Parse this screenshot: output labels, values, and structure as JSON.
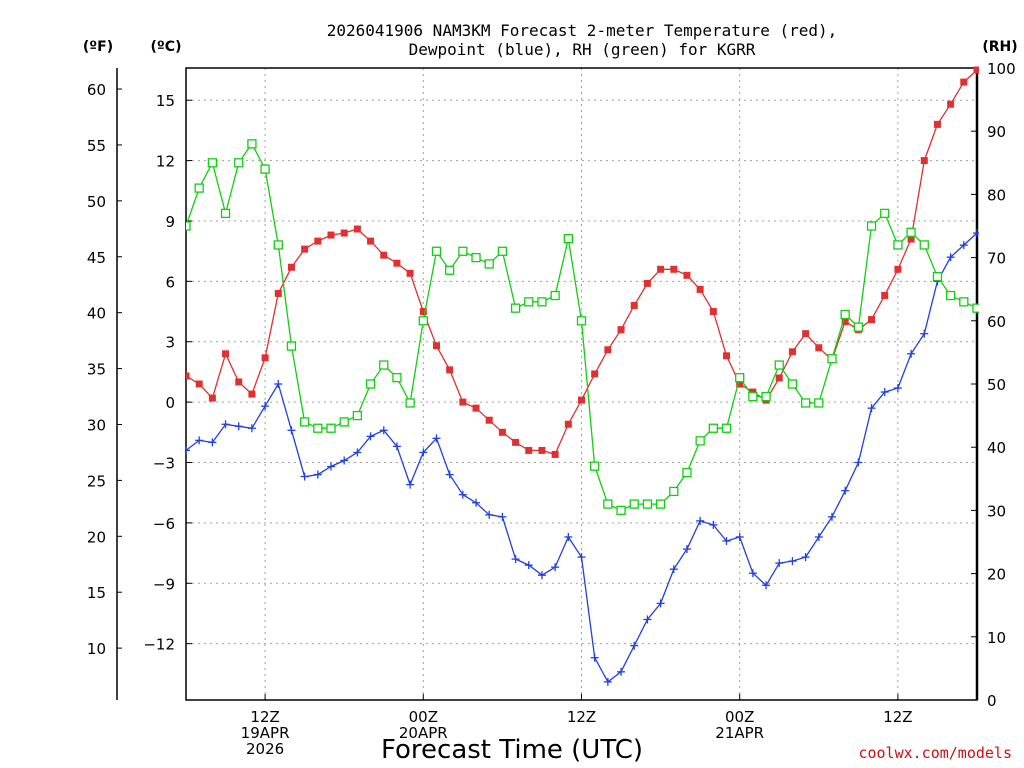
{
  "chart_data": {
    "type": "line",
    "title_line1": "2026041906 NAM3KM Forecast 2-meter Temperature (red),",
    "title_line2": "Dewpoint (blue), RH (green) for KGRR",
    "xlabel": "Forecast Time (UTC)",
    "credit": "coolwx.com/models",
    "units": {
      "f": "(ºF)",
      "c": "(ºC)",
      "rh": "(RH)"
    },
    "grid": true,
    "x_range_hours": [
      6,
      66
    ],
    "celsius_range": [
      -14.8,
      16.6
    ],
    "rh_range": [
      0,
      100
    ],
    "fahrenheit_ticks": [
      10,
      15,
      20,
      25,
      30,
      35,
      40,
      45,
      50,
      55,
      60
    ],
    "celsius_ticks": [
      -12,
      -9,
      -6,
      -3,
      0,
      3,
      6,
      9,
      12,
      15
    ],
    "celsius_tick_labels": [
      "−12",
      "−9",
      "−6",
      "−3",
      "0",
      "3",
      "6",
      "9",
      "12",
      "15"
    ],
    "rh_ticks": [
      0,
      10,
      20,
      30,
      40,
      50,
      60,
      70,
      80,
      90,
      100
    ],
    "x_ticks": [
      {
        "hour": 12,
        "lines": [
          "12Z",
          "19APR",
          "2026"
        ]
      },
      {
        "hour": 24,
        "lines": [
          "00Z",
          "20APR"
        ]
      },
      {
        "hour": 36,
        "lines": [
          "12Z"
        ]
      },
      {
        "hour": 48,
        "lines": [
          "00Z",
          "21APR"
        ]
      },
      {
        "hour": 60,
        "lines": [
          "12Z"
        ]
      }
    ],
    "hours": [
      6,
      7,
      8,
      9,
      10,
      11,
      12,
      13,
      14,
      15,
      16,
      17,
      18,
      19,
      20,
      21,
      22,
      23,
      24,
      25,
      26,
      27,
      28,
      29,
      30,
      31,
      32,
      33,
      34,
      35,
      36,
      37,
      38,
      39,
      40,
      41,
      42,
      43,
      44,
      45,
      46,
      47,
      48,
      49,
      50,
      51,
      52,
      53,
      54,
      55,
      56,
      57,
      58,
      59,
      60,
      61,
      62,
      63,
      64,
      65,
      66
    ],
    "series": [
      {
        "name": "Temperature",
        "units": "C",
        "color": "#e03030",
        "marker": "filled-square",
        "values": [
          1.3,
          0.9,
          0.2,
          2.4,
          1.0,
          0.4,
          2.2,
          5.4,
          6.7,
          7.6,
          8.0,
          8.3,
          8.4,
          8.6,
          8.0,
          7.3,
          6.9,
          6.4,
          4.5,
          2.8,
          1.6,
          0.0,
          -0.3,
          -0.9,
          -1.5,
          -2.0,
          -2.4,
          -2.4,
          -2.6,
          -1.1,
          0.1,
          1.4,
          2.6,
          3.6,
          4.8,
          5.9,
          6.6,
          6.6,
          6.3,
          5.6,
          4.5,
          2.3,
          0.9,
          0.5,
          0.1,
          1.2,
          2.5,
          3.4,
          2.7,
          2.1,
          4.0,
          3.6,
          4.1,
          5.3,
          6.6,
          8.1,
          12.0,
          13.8,
          14.8,
          15.9,
          16.5
        ]
      },
      {
        "name": "Dewpoint",
        "units": "C",
        "color": "#2040e0",
        "marker": "plus",
        "values": [
          -2.4,
          -1.9,
          -2.0,
          -1.1,
          -1.2,
          -1.3,
          -0.2,
          0.9,
          -1.4,
          -3.7,
          -3.6,
          -3.2,
          -2.9,
          -2.5,
          -1.7,
          -1.4,
          -2.2,
          -4.1,
          -2.5,
          -1.8,
          -3.6,
          -4.6,
          -5.0,
          -5.6,
          -5.7,
          -7.8,
          -8.1,
          -8.6,
          -8.2,
          -6.7,
          -7.7,
          -12.7,
          -13.9,
          -13.4,
          -12.1,
          -10.8,
          -10.0,
          -8.3,
          -7.3,
          -5.9,
          -6.1,
          -6.9,
          -6.7,
          -8.5,
          -9.1,
          -8.0,
          -7.9,
          -7.7,
          -6.7,
          -5.7,
          -4.4,
          -3.0,
          -0.3,
          0.5,
          0.7,
          2.4,
          3.4,
          6.0,
          7.2,
          7.8,
          8.4
        ]
      },
      {
        "name": "RH",
        "units": "%",
        "color": "#10d010",
        "marker": "open-square",
        "values": [
          75,
          81,
          85,
          77,
          85,
          88,
          84,
          72,
          56,
          44,
          43,
          43,
          44,
          45,
          50,
          53,
          51,
          47,
          60,
          71,
          68,
          71,
          70,
          69,
          71,
          62,
          63,
          63,
          64,
          73,
          60,
          37,
          31,
          30,
          31,
          31,
          31,
          33,
          36,
          41,
          43,
          43,
          51,
          48,
          48,
          53,
          50,
          47,
          47,
          54,
          61,
          59,
          75,
          77,
          72,
          74,
          72,
          67,
          64,
          63,
          62
        ]
      }
    ]
  }
}
